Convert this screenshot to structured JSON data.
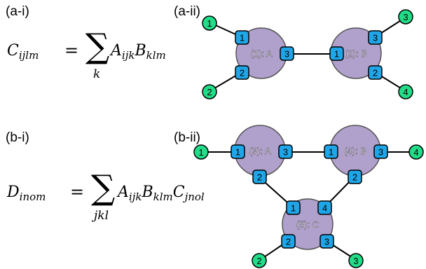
{
  "panels": {
    "ai": {
      "label": "(a-i)"
    },
    "aii": {
      "label": "(a-ii)"
    },
    "bi": {
      "label": "(b-i)"
    },
    "bii": {
      "label": "(b-ii)"
    }
  },
  "formula_a": {
    "lhs_symbol": "C",
    "lhs_sub": "ijlm",
    "equals": "=",
    "sum": "∑",
    "sum_index": "k",
    "term1_symbol": "A",
    "term1_sub": "ijk",
    "term2_symbol": "B",
    "term2_sub": "klm"
  },
  "formula_b": {
    "lhs_symbol": "D",
    "lhs_sub": "inom",
    "equals": "=",
    "sum": "∑",
    "sum_index": "jkl",
    "term1_symbol": "A",
    "term1_sub": "ijk",
    "term2_symbol": "B",
    "term2_sub": "klm",
    "term3_symbol": "C",
    "term3_sub": "jnol"
  },
  "colors": {
    "tensor_fill": "#b0a0cc",
    "port_fill": "#1fa6e8",
    "open_leg_fill": "#22dd88",
    "stroke": "#000000"
  },
  "diagram_a": {
    "nodes": [
      {
        "label": "(1): A",
        "ports": [
          "1",
          "2",
          "3"
        ]
      },
      {
        "label": "(2): B",
        "ports": [
          "1",
          "2",
          "3"
        ]
      }
    ],
    "open_legs": [
      "1",
      "2",
      "3",
      "4"
    ]
  },
  "diagram_b": {
    "nodes": [
      {
        "label": "(3): A",
        "ports": [
          "1",
          "2",
          "3"
        ]
      },
      {
        "label": "(4): B",
        "ports": [
          "1",
          "2",
          "3"
        ]
      },
      {
        "label": "(5): C",
        "ports": [
          "1",
          "2",
          "3",
          "4"
        ]
      }
    ],
    "open_legs": [
      "1",
      "2",
      "3",
      "4"
    ]
  }
}
